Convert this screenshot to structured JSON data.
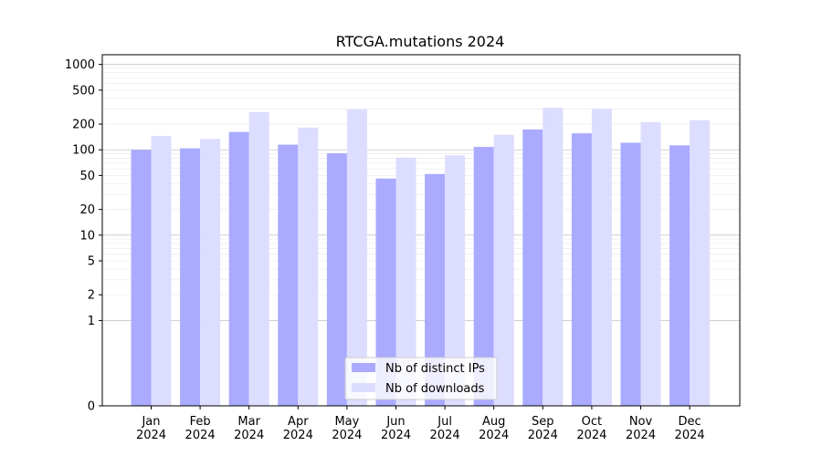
{
  "chart_data": {
    "type": "bar",
    "title": "RTCGA.mutations 2024",
    "xlabel": "",
    "ylabel": "",
    "yscale": "symlog",
    "ylim": [
      0,
      1300
    ],
    "yticks": [
      0,
      1,
      2,
      5,
      10,
      20,
      50,
      100,
      200,
      500,
      1000
    ],
    "categories": [
      "Jan\n2024",
      "Feb\n2024",
      "Mar\n2024",
      "Apr\n2024",
      "May\n2024",
      "Jun\n2024",
      "Jul\n2024",
      "Aug\n2024",
      "Sep\n2024",
      "Oct\n2024",
      "Nov\n2024",
      "Dec\n2024"
    ],
    "series": [
      {
        "name": "Nb of distinct IPs",
        "color": "#aaaaff",
        "values": [
          100,
          104,
          162,
          115,
          91,
          46,
          52,
          108,
          173,
          156,
          121,
          113
        ]
      },
      {
        "name": "Nb of downloads",
        "color": "#ddddff",
        "values": [
          145,
          134,
          276,
          182,
          298,
          81,
          86,
          150,
          311,
          302,
          211,
          222
        ]
      }
    ],
    "grid": true,
    "legend_position": "lower-center"
  }
}
